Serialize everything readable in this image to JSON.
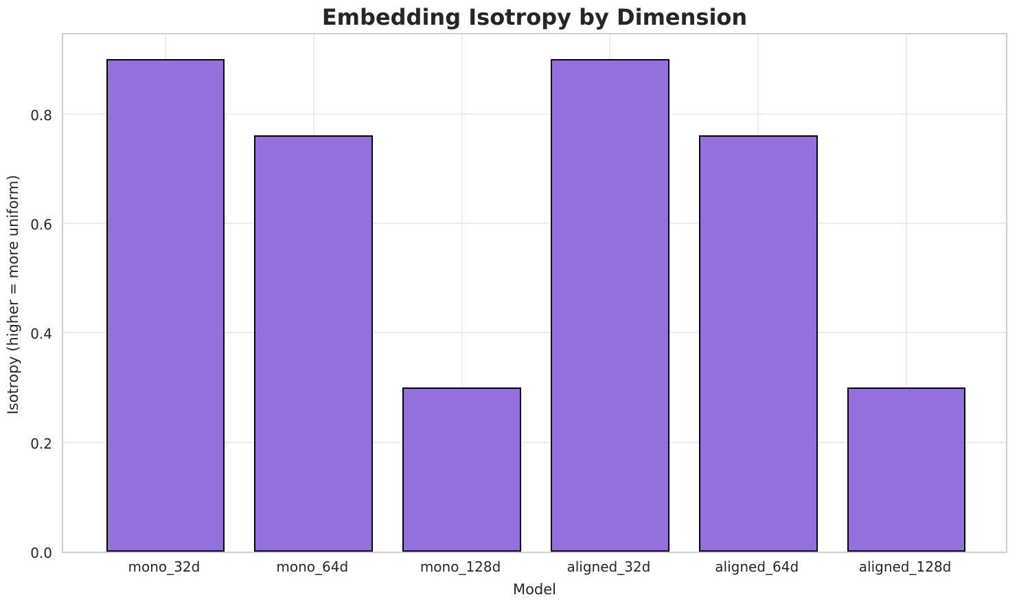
{
  "chart_data": {
    "type": "bar",
    "title": "Embedding Isotropy by Dimension",
    "xlabel": "Model",
    "ylabel": "Isotropy (higher = more uniform)",
    "categories": [
      "mono_32d",
      "mono_64d",
      "mono_128d",
      "aligned_32d",
      "aligned_64d",
      "aligned_128d"
    ],
    "values": [
      0.9,
      0.76,
      0.3,
      0.9,
      0.76,
      0.3
    ],
    "ylim": [
      0,
      0.95
    ],
    "yticks": [
      0.0,
      0.2,
      0.4,
      0.6,
      0.8
    ],
    "ytick_labels": [
      "0.0",
      "0.2",
      "0.4",
      "0.6",
      "0.8"
    ],
    "grid": true,
    "legend": "none",
    "colors": {
      "bar_fill": "#9370db",
      "bar_edge": "#000000",
      "grid_line": "#ececec",
      "spine": "#cfcfcf",
      "text": "#262626",
      "background": "#ffffff"
    }
  }
}
